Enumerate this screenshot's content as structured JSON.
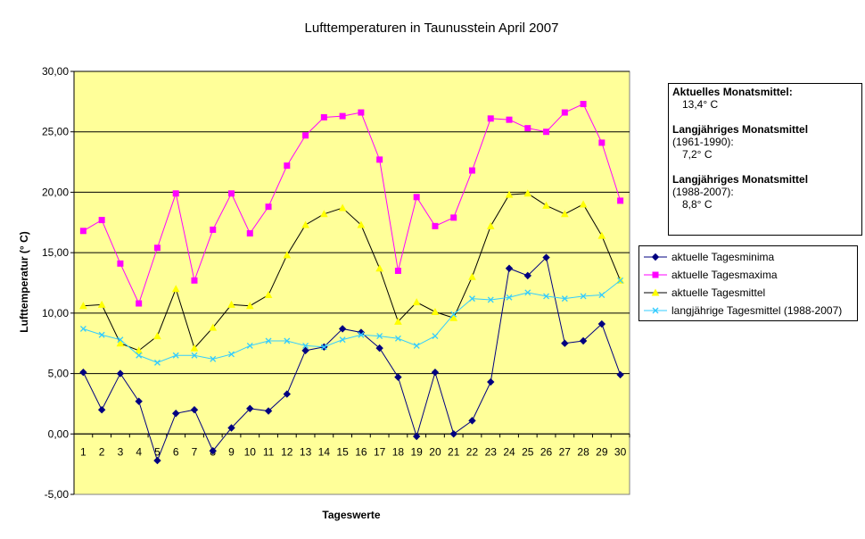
{
  "chart_data": {
    "type": "line",
    "title": "Lufttemperaturen in Taunusstein  April  2007",
    "xlabel": "Tageswerte",
    "ylabel": "Lufttemperatur (° C)",
    "ylim": [
      -5,
      30
    ],
    "ytick_step": 5,
    "ytick_labels": [
      "-5,00",
      "0,00",
      "5,00",
      "10,00",
      "15,00",
      "20,00",
      "25,00",
      "30,00"
    ],
    "categories": [
      "1",
      "2",
      "3",
      "4",
      "5",
      "6",
      "7",
      "8",
      "9",
      "10",
      "11",
      "12",
      "13",
      "14",
      "15",
      "16",
      "17",
      "18",
      "19",
      "20",
      "21",
      "22",
      "23",
      "24",
      "25",
      "26",
      "27",
      "28",
      "29",
      "30"
    ],
    "grid": "horizontal",
    "legend_position": "right",
    "plot_background": "#ffff99",
    "series": [
      {
        "name": "aktuelle Tagesminima",
        "color": "#000080",
        "marker": "diamond",
        "values": [
          5.1,
          2.0,
          5.0,
          2.7,
          -2.2,
          1.7,
          2.0,
          -1.4,
          0.5,
          2.1,
          1.9,
          3.3,
          6.9,
          7.2,
          8.7,
          8.4,
          7.1,
          4.7,
          -0.2,
          5.1,
          0.0,
          1.1,
          4.3,
          13.7,
          13.1,
          14.6,
          7.5,
          7.7,
          9.1,
          4.9
        ]
      },
      {
        "name": "aktuelle Tagesmaxima",
        "color": "#ff00ff",
        "marker": "square",
        "values": [
          16.8,
          17.7,
          14.1,
          10.8,
          15.4,
          19.9,
          12.7,
          16.9,
          19.9,
          16.6,
          18.8,
          22.2,
          24.7,
          26.2,
          26.3,
          26.6,
          22.7,
          13.5,
          19.6,
          17.2,
          17.9,
          21.8,
          26.1,
          26.0,
          25.3,
          25.0,
          26.6,
          27.3,
          24.1,
          19.3
        ]
      },
      {
        "name": "aktuelle Tagesmittel",
        "color": "#ffff00",
        "line_color": "#000000",
        "marker": "triangle",
        "values": [
          10.6,
          10.7,
          7.5,
          6.9,
          8.1,
          12.0,
          7.1,
          8.8,
          10.7,
          10.6,
          11.5,
          14.8,
          17.3,
          18.2,
          18.7,
          17.3,
          13.7,
          9.3,
          10.9,
          10.1,
          9.6,
          13.0,
          17.2,
          19.8,
          19.9,
          18.9,
          18.2,
          19.0,
          16.4,
          12.7
        ]
      },
      {
        "name": "langjährige Tagesmittel (1988-2007)",
        "color": "#33ccff",
        "marker": "x",
        "values": [
          8.7,
          8.2,
          7.8,
          6.5,
          5.9,
          6.5,
          6.5,
          6.2,
          6.6,
          7.3,
          7.7,
          7.7,
          7.3,
          7.2,
          7.8,
          8.2,
          8.1,
          7.9,
          7.3,
          8.1,
          9.9,
          11.2,
          11.1,
          11.3,
          11.7,
          11.4,
          11.2,
          11.4,
          11.5,
          12.7
        ]
      }
    ]
  },
  "info_box": {
    "line1_heading": "Aktuelles Monatsmittel:",
    "line1_value": "13,4° C",
    "line2_heading": "Langjähriges Monatsmittel",
    "line2_period": "(1961-1990):",
    "line2_value": "7,2° C",
    "line3_heading": "Langjähriges Monatsmittel",
    "line3_period": "(1988-2007):",
    "line3_value": "8,8° C"
  },
  "legend": {
    "items": [
      "aktuelle Tagesminima",
      "aktuelle Tagesmaxima",
      "aktuelle Tagesmittel",
      "langjährige Tagesmittel (1988-2007)"
    ]
  }
}
